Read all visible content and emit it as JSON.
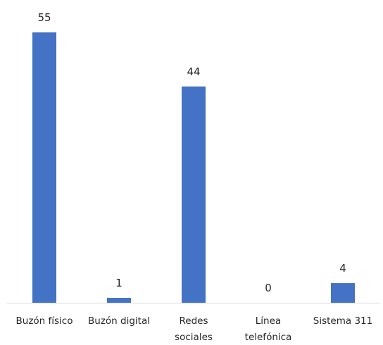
{
  "chart_data": {
    "type": "bar",
    "categories": [
      "Buzón físico",
      "Buzón digital",
      "Redes sociales",
      "Línea telefónica",
      "Sistema 311"
    ],
    "category_lines": [
      [
        "Buzón físico"
      ],
      [
        "Buzón digital"
      ],
      [
        "Redes",
        "sociales"
      ],
      [
        "Línea",
        "telefónica"
      ],
      [
        "Sistema 311"
      ]
    ],
    "values": [
      55,
      1,
      44,
      0,
      4
    ],
    "data_labels": [
      "55",
      "1",
      "44",
      "0",
      "4"
    ],
    "ylim": [
      0,
      55
    ],
    "grid": false,
    "legend": "none",
    "bar_color": "#4472C4",
    "axis_color": "#D9D9D9",
    "text_color": "#262626"
  }
}
